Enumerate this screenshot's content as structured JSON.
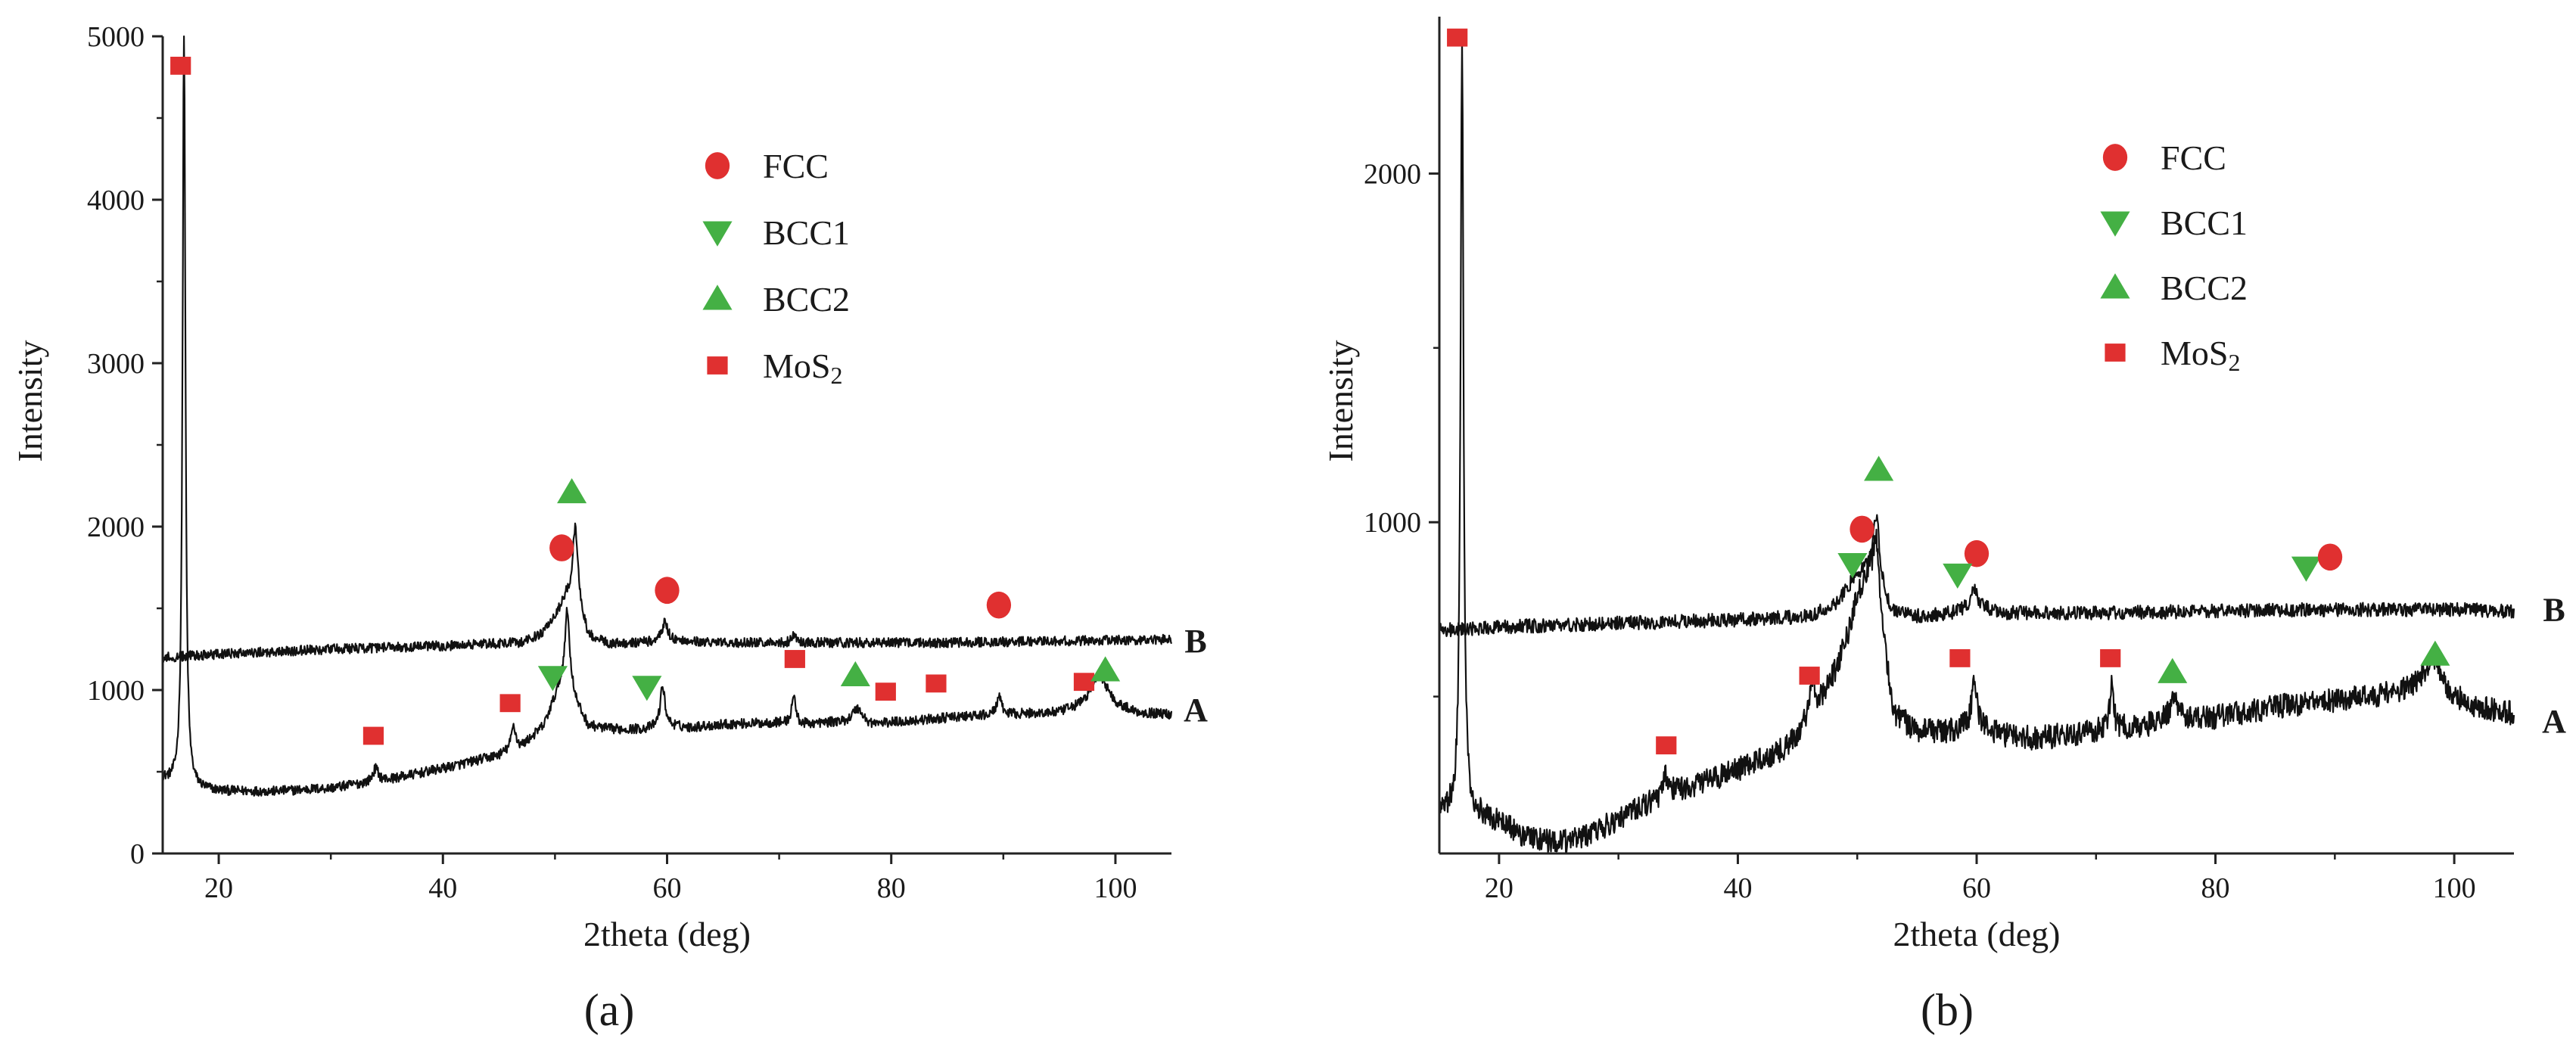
{
  "chart_data": [
    {
      "type": "line",
      "panel_label": "(a)",
      "xlabel": "2theta (deg)",
      "ylabel": "Intensity",
      "xlim": [
        15,
        105
      ],
      "ylim": [
        0,
        5000
      ],
      "xticks": [
        20,
        40,
        60,
        80,
        100
      ],
      "yticks": [
        0,
        1000,
        2000,
        3000,
        4000,
        5000
      ],
      "legend": [
        {
          "label": "FCC",
          "marker": "circle",
          "color": "#e03030"
        },
        {
          "label": "BCC1",
          "marker": "triangle-down",
          "color": "#44b044"
        },
        {
          "label": "BCC2",
          "marker": "triangle-up",
          "color": "#44b044"
        },
        {
          "label": "MoS",
          "sub": "2",
          "marker": "square",
          "color": "#e03030"
        }
      ],
      "series": [
        {
          "name": "A",
          "baseline": [
            [
              15,
              450
            ],
            [
              16,
              420
            ],
            [
              17,
              400
            ],
            [
              18,
              390
            ],
            [
              20,
              380
            ],
            [
              25,
              380
            ],
            [
              30,
              400
            ],
            [
              35,
              450
            ],
            [
              40,
              520
            ],
            [
              45,
              600
            ],
            [
              47,
              650
            ],
            [
              49,
              780
            ],
            [
              50,
              950
            ],
            [
              51,
              1100
            ],
            [
              52,
              900
            ],
            [
              53,
              780
            ],
            [
              55,
              760
            ],
            [
              58,
              760
            ],
            [
              60,
              780
            ],
            [
              62,
              770
            ],
            [
              65,
              790
            ],
            [
              70,
              800
            ],
            [
              72,
              790
            ],
            [
              75,
              800
            ],
            [
              78,
              780
            ],
            [
              80,
              800
            ],
            [
              85,
              830
            ],
            [
              90,
              850
            ],
            [
              95,
              860
            ],
            [
              97,
              900
            ],
            [
              99,
              950
            ],
            [
              100,
              900
            ],
            [
              102,
              860
            ],
            [
              105,
              850
            ]
          ],
          "peaks": [
            [
              16.9,
              4700,
              0.15
            ],
            [
              34,
              80,
              0.3
            ],
            [
              46.3,
              150,
              0.25
            ],
            [
              51.1,
              400,
              0.25
            ],
            [
              59.6,
              250,
              0.25
            ],
            [
              71.3,
              180,
              0.2
            ],
            [
              77,
              100,
              0.6
            ],
            [
              89.6,
              110,
              0.25
            ],
            [
              98.5,
              150,
              0.8
            ]
          ],
          "noise": 30
        },
        {
          "name": "B",
          "baseline": [
            [
              15,
              1200
            ],
            [
              20,
              1220
            ],
            [
              30,
              1250
            ],
            [
              40,
              1270
            ],
            [
              47,
              1290
            ],
            [
              49,
              1350
            ],
            [
              50,
              1450
            ],
            [
              51,
              1550
            ],
            [
              52,
              1480
            ],
            [
              53,
              1320
            ],
            [
              55,
              1280
            ],
            [
              60,
              1300
            ],
            [
              65,
              1290
            ],
            [
              75,
              1290
            ],
            [
              85,
              1290
            ],
            [
              95,
              1300
            ],
            [
              105,
              1310
            ]
          ],
          "peaks": [
            [
              51.8,
              500,
              0.3
            ],
            [
              59.8,
              120,
              0.3
            ],
            [
              71.3,
              50,
              0.2
            ]
          ],
          "noise": 30
        }
      ],
      "curve_labels": [
        {
          "text": "B",
          "y": 1300
        },
        {
          "text": "A",
          "y": 880
        }
      ],
      "annotations": [
        {
          "marker": "square",
          "x": 16.6,
          "y": 4820
        },
        {
          "marker": "square",
          "x": 33.8,
          "y": 720
        },
        {
          "marker": "square",
          "x": 46.0,
          "y": 920
        },
        {
          "marker": "circle",
          "x": 50.6,
          "y": 1870
        },
        {
          "marker": "triangle-down",
          "x": 49.8,
          "y": 1080
        },
        {
          "marker": "triangle-up",
          "x": 51.5,
          "y": 2210
        },
        {
          "marker": "circle",
          "x": 60.0,
          "y": 1610
        },
        {
          "marker": "triangle-down",
          "x": 58.2,
          "y": 1020
        },
        {
          "marker": "square",
          "x": 71.4,
          "y": 1190
        },
        {
          "marker": "triangle-up",
          "x": 76.8,
          "y": 1090
        },
        {
          "marker": "square",
          "x": 79.5,
          "y": 990
        },
        {
          "marker": "square",
          "x": 84.0,
          "y": 1040
        },
        {
          "marker": "circle",
          "x": 89.6,
          "y": 1520
        },
        {
          "marker": "square",
          "x": 97.2,
          "y": 1050
        },
        {
          "marker": "triangle-up",
          "x": 99.1,
          "y": 1120
        }
      ]
    },
    {
      "type": "line",
      "panel_label": "(b)",
      "xlabel": "2theta (deg)",
      "ylabel": "Intensity",
      "xlim": [
        15,
        105
      ],
      "ylim": [
        50,
        2450
      ],
      "xticks": [
        20,
        40,
        60,
        80,
        100
      ],
      "yticks": [
        1000,
        2000
      ],
      "legend": [
        {
          "label": "FCC",
          "marker": "circle",
          "color": "#e03030"
        },
        {
          "label": "BCC1",
          "marker": "triangle-down",
          "color": "#44b044"
        },
        {
          "label": "BCC2",
          "marker": "triangle-up",
          "color": "#44b044"
        },
        {
          "label": "MoS",
          "sub": "2",
          "marker": "square",
          "color": "#e03030"
        }
      ],
      "series": [
        {
          "name": "A",
          "baseline": [
            [
              15,
              170
            ],
            [
              18,
              160
            ],
            [
              20,
              140
            ],
            [
              22,
              100
            ],
            [
              25,
              80
            ],
            [
              28,
              110
            ],
            [
              30,
              150
            ],
            [
              33,
              200
            ],
            [
              36,
              240
            ],
            [
              40,
              290
            ],
            [
              44,
              350
            ],
            [
              46,
              430
            ],
            [
              48,
              560
            ],
            [
              49,
              650
            ],
            [
              50,
              780
            ],
            [
              51,
              850
            ],
            [
              52,
              700
            ],
            [
              53,
              450
            ],
            [
              55,
              400
            ],
            [
              58,
              400
            ],
            [
              60,
              420
            ],
            [
              62,
              390
            ],
            [
              65,
              380
            ],
            [
              70,
              400
            ],
            [
              75,
              420
            ],
            [
              80,
              440
            ],
            [
              85,
              470
            ],
            [
              90,
              490
            ],
            [
              95,
              510
            ],
            [
              98,
              550
            ],
            [
              100,
              500
            ],
            [
              102,
              470
            ],
            [
              105,
              450
            ]
          ],
          "peaks": [
            [
              16.9,
              2200,
              0.15
            ],
            [
              34,
              60,
              0.3
            ],
            [
              46.2,
              120,
              0.25
            ],
            [
              51.6,
              200,
              0.3
            ],
            [
              59.8,
              130,
              0.25
            ],
            [
              71.3,
              120,
              0.2
            ],
            [
              76.5,
              60,
              0.5
            ],
            [
              98.3,
              60,
              0.6
            ]
          ],
          "noise": 35
        },
        {
          "name": "B",
          "baseline": [
            [
              15,
              690
            ],
            [
              20,
              700
            ],
            [
              30,
              710
            ],
            [
              40,
              720
            ],
            [
              46,
              730
            ],
            [
              48,
              760
            ],
            [
              49,
              800
            ],
            [
              50,
              850
            ],
            [
              51,
              860
            ],
            [
              52,
              800
            ],
            [
              53,
              740
            ],
            [
              55,
              730
            ],
            [
              58,
              740
            ],
            [
              60,
              760
            ],
            [
              62,
              740
            ],
            [
              70,
              740
            ],
            [
              80,
              745
            ],
            [
              90,
              750
            ],
            [
              100,
              750
            ],
            [
              105,
              745
            ]
          ],
          "peaks": [
            [
              51.6,
              200,
              0.3
            ],
            [
              59.8,
              50,
              0.3
            ]
          ],
          "noise": 20
        }
      ],
      "curve_labels": [
        {
          "text": "B",
          "y": 750
        },
        {
          "text": "A",
          "y": 430
        }
      ],
      "annotations": [
        {
          "marker": "square",
          "x": 16.5,
          "y": 2390
        },
        {
          "marker": "square",
          "x": 34.0,
          "y": 360
        },
        {
          "marker": "square",
          "x": 46.0,
          "y": 560
        },
        {
          "marker": "circle",
          "x": 50.4,
          "y": 980
        },
        {
          "marker": "triangle-down",
          "x": 49.6,
          "y": 880
        },
        {
          "marker": "triangle-up",
          "x": 51.8,
          "y": 1150
        },
        {
          "marker": "circle",
          "x": 60.0,
          "y": 910
        },
        {
          "marker": "triangle-down",
          "x": 58.4,
          "y": 850
        },
        {
          "marker": "square",
          "x": 58.6,
          "y": 610
        },
        {
          "marker": "square",
          "x": 71.2,
          "y": 610
        },
        {
          "marker": "triangle-up",
          "x": 76.4,
          "y": 570
        },
        {
          "marker": "triangle-down",
          "x": 87.6,
          "y": 870
        },
        {
          "marker": "circle",
          "x": 89.6,
          "y": 900
        },
        {
          "marker": "triangle-up",
          "x": 98.4,
          "y": 620
        }
      ]
    }
  ]
}
